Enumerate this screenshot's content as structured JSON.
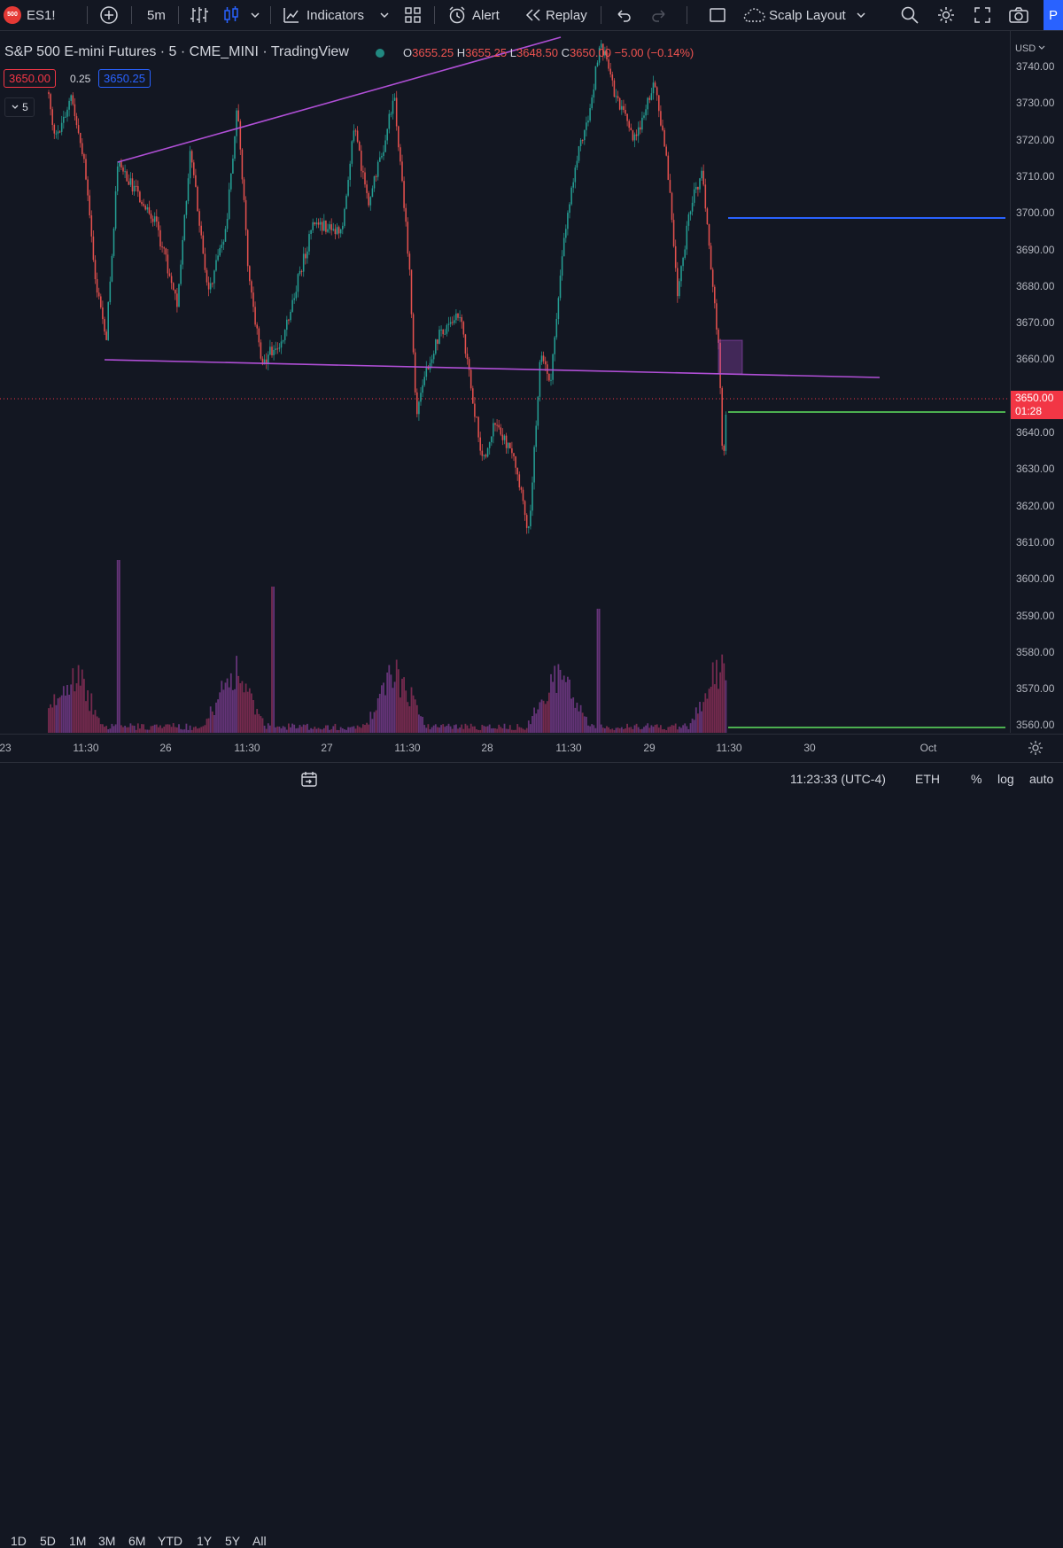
{
  "toolbar": {
    "symbol_badge": "500",
    "symbol": "ES1!",
    "interval": "5m",
    "indicators_label": "Indicators",
    "alert_label": "Alert",
    "replay_label": "Replay",
    "layout_label": "Scalp Layout",
    "publish_label": "P"
  },
  "legend": {
    "title": "S&P 500 E-mini Futures · 5 · CME_MINI · TradingView",
    "open_label": "O",
    "open": "3655.25",
    "high_label": "H",
    "high": "3655.25",
    "low_label": "L",
    "low": "3648.50",
    "close_label": "C",
    "close": "3650.00",
    "change": "−5.00 (−0.14%)",
    "bid": "3650.00",
    "spread": "0.25",
    "ask": "3650.25",
    "collapse": "5"
  },
  "price_axis": {
    "currency": "USD",
    "ticks": [
      "3740.00",
      "3730.00",
      "3720.00",
      "3710.00",
      "3700.00",
      "3690.00",
      "3680.00",
      "3670.00",
      "3660.00",
      "3650.00",
      "3640.00",
      "3630.00",
      "3620.00",
      "3610.00",
      "3600.00",
      "3590.00",
      "3580.00",
      "3570.00",
      "3560.00"
    ],
    "current_price": "3650.00",
    "countdown": "01:28"
  },
  "time_axis": {
    "labels": [
      "23",
      "11:30",
      "26",
      "11:30",
      "27",
      "11:30",
      "28",
      "11:30",
      "29",
      "11:30",
      "30",
      "Oct"
    ]
  },
  "bottom_bar": {
    "ranges": [
      "1D",
      "5D",
      "1M",
      "3M",
      "6M",
      "YTD",
      "1Y",
      "5Y",
      "All"
    ],
    "clock": "11:23:33 (UTC-4)",
    "session": "ETH",
    "percent": "%",
    "log": "log",
    "auto": "auto"
  },
  "colors": {
    "background": "#131722",
    "up": "#26a69a",
    "down": "#ef5350",
    "trendline": "#b04fd6",
    "blue_line": "#2962ff",
    "green_line": "#4caf50",
    "price_tag": "#f23645"
  }
}
